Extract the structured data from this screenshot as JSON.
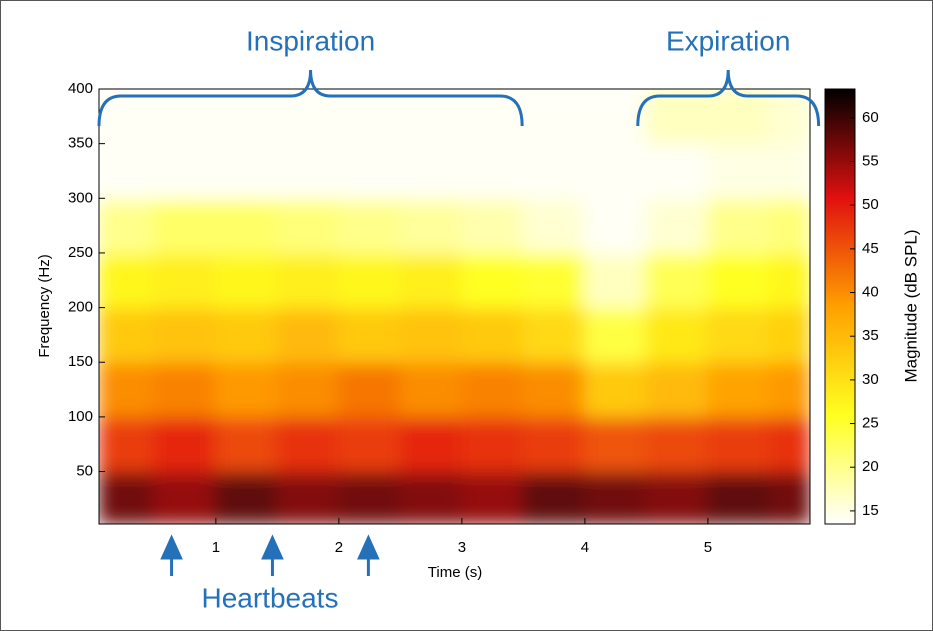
{
  "chart_data": {
    "type": "heatmap",
    "xlabel": "Time (s)",
    "ylabel": "Frequency (Hz)",
    "colorbar_label": "Magnitude (dB SPL)",
    "xlim": [
      0.05,
      5.83
    ],
    "xticks": [
      1,
      2,
      3,
      4,
      5
    ],
    "ylim": [
      2,
      400
    ],
    "yticks": [
      50,
      100,
      150,
      200,
      250,
      300,
      350,
      400
    ],
    "clim": [
      13.5,
      63.3
    ],
    "cticks": [
      15,
      20,
      25,
      30,
      35,
      40,
      45,
      50,
      55,
      60
    ],
    "colormap": [
      "#ffffff",
      "#ffff20",
      "#ffa000",
      "#e01010",
      "#000000"
    ],
    "x_edges": [
      0.05,
      0.5,
      1.0,
      1.5,
      2.0,
      2.5,
      3.0,
      3.5,
      4.0,
      4.5,
      5.0,
      5.5,
      5.83
    ],
    "y_edges": [
      2,
      50,
      100,
      150,
      200,
      250,
      300,
      350,
      400
    ],
    "z": [
      [
        57,
        55,
        58,
        56,
        57,
        56,
        55,
        58,
        57,
        56,
        58,
        57
      ],
      [
        47,
        49,
        46,
        48,
        47,
        49,
        48,
        47,
        45,
        46,
        47,
        48
      ],
      [
        40,
        41,
        39,
        40,
        42,
        40,
        41,
        40,
        33,
        35,
        38,
        39
      ],
      [
        33,
        34,
        33,
        35,
        33,
        34,
        33,
        31,
        24,
        29,
        31,
        32
      ],
      [
        27,
        28,
        27,
        28,
        27,
        28,
        26,
        25,
        17,
        23,
        26,
        27
      ],
      [
        20,
        22,
        22,
        21,
        20,
        19,
        18,
        16,
        14,
        16,
        20,
        21
      ],
      [
        14,
        14,
        14,
        14,
        14,
        14,
        14,
        14,
        14,
        14,
        15,
        15
      ],
      [
        14,
        14,
        14,
        14,
        14,
        14,
        14,
        14,
        14,
        17,
        17,
        16
      ]
    ],
    "annotation_color": "#2471b9",
    "annotations": [
      {
        "text": "Inspiration",
        "span": [
          0.05,
          3.49
        ]
      },
      {
        "text": "Expiration",
        "span": [
          4.43,
          5.9
        ]
      },
      {
        "text": "Heartbeats",
        "times": [
          0.64,
          1.46,
          2.24
        ]
      }
    ]
  }
}
